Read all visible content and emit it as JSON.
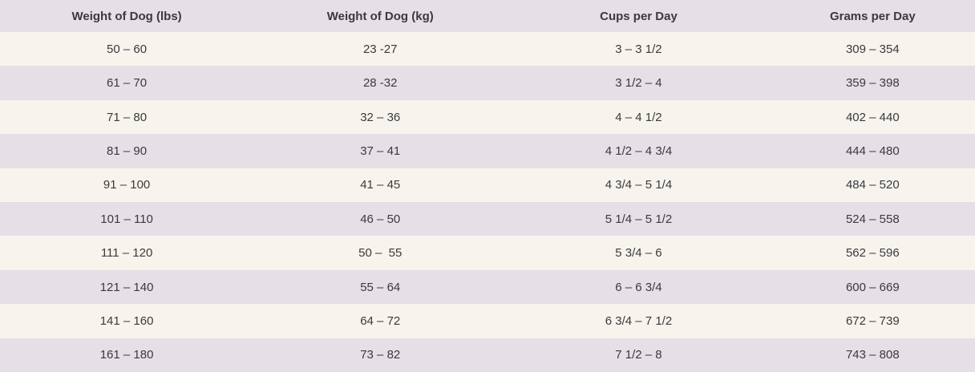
{
  "table": {
    "name": "dog-feeding-guide",
    "columns": [
      {
        "label": "Weight of Dog (lbs)"
      },
      {
        "label": "Weight of Dog (kg)"
      },
      {
        "label": "Cups per Day"
      },
      {
        "label": "Grams per Day"
      }
    ],
    "rows": [
      [
        "50 – 60",
        "23 -27",
        "3 – 3 1/2",
        "309 – 354"
      ],
      [
        "61 – 70",
        "28 -32",
        "3 1/2 – 4",
        "359 – 398"
      ],
      [
        "71 – 80",
        "32 – 36",
        "4 – 4 1/2",
        "402 – 440"
      ],
      [
        "81 – 90",
        "37 – 41",
        "4 1/2 – 4 3/4",
        "444 – 480"
      ],
      [
        "91 – 100",
        "41 – 45",
        "4 3/4 – 5 1/4",
        "484 – 520"
      ],
      [
        "101 – 110",
        "46 – 50",
        "5 1/4 – 5 1/2",
        "524 – 558"
      ],
      [
        "111 – 120",
        "50 –  55",
        "5 3/4 – 6",
        "562 – 596"
      ],
      [
        "121 – 140",
        "55 – 64",
        "6 – 6 3/4",
        "600 – 669"
      ],
      [
        "141 – 160",
        "64 – 72",
        "6 3/4 – 7 1/2",
        "672 – 739"
      ],
      [
        "161 – 180",
        "73 – 82",
        "7 1/2 – 8",
        "743 – 808"
      ]
    ]
  },
  "colors": {
    "header_bg": "#e5dfe6",
    "row_cream_bg": "#f7f4ee",
    "row_lavender_bg": "#e5dfe6",
    "text": "#3c393d"
  }
}
